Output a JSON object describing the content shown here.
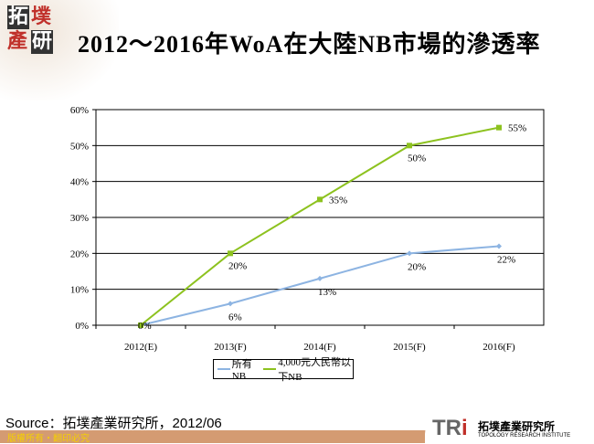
{
  "title": "2012～2016年WoA在大陸NB市場的滲透率",
  "logo": {
    "chars": [
      "拓",
      "墣",
      "產",
      "研"
    ]
  },
  "source": "Source：拓墣產業研究所，2012/06",
  "copyright": "版權所有‧翻印必究",
  "brand": {
    "mark": "TRi",
    "name_cn": "拓墣產業研究所",
    "name_en": "TOPOLOGY RESEARCH INSTITUTE"
  },
  "chart_data": {
    "type": "line",
    "categories": [
      "2012(E)",
      "2013(F)",
      "2014(F)",
      "2015(F)",
      "2016(F)"
    ],
    "series": [
      {
        "name": "所有NB",
        "values": [
          0,
          6,
          13,
          20,
          22
        ],
        "labels": [
          "",
          "6%",
          "13%",
          "20%",
          "22%"
        ],
        "color": "#8db4e2"
      },
      {
        "name": "4,000元人民幣以下NB",
        "values": [
          0,
          20,
          35,
          50,
          55
        ],
        "labels": [
          "0%",
          "20%",
          "35%",
          "50%",
          "55%"
        ],
        "color": "#8dc21f"
      }
    ],
    "ylim": [
      0,
      60
    ],
    "yticks": [
      "0%",
      "10%",
      "20%",
      "30%",
      "40%",
      "50%",
      "60%"
    ],
    "grid": true,
    "legend": "bottom"
  }
}
